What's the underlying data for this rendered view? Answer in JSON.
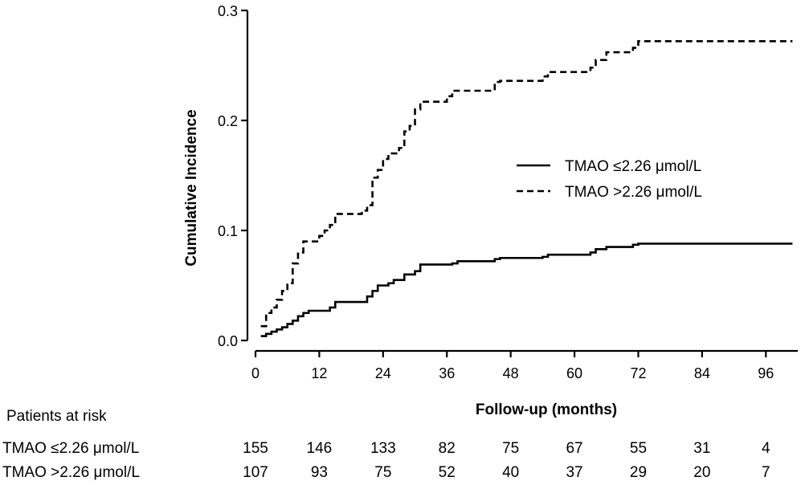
{
  "chart_data": {
    "type": "line",
    "subtype": "step",
    "xlabel": "Follow-up (months)",
    "ylabel": "Cumulative Incidence",
    "xlim": [
      0,
      102
    ],
    "ylim": [
      0,
      0.3
    ],
    "x_ticks": [
      0,
      12,
      24,
      36,
      48,
      60,
      72,
      84,
      96
    ],
    "x_tick_labels": [
      "0",
      "12",
      "24",
      "36",
      "48",
      "60",
      "72",
      "84",
      "96"
    ],
    "y_ticks": [
      0,
      0.1,
      0.2,
      0.3
    ],
    "y_tick_labels": [
      "0.0",
      "0.1",
      "0.2",
      "0.3"
    ],
    "legend_position": "right",
    "series": [
      {
        "name": "TMAO ≤2.26 μmol/L",
        "style": "solid",
        "x": [
          1,
          2,
          3,
          4,
          5,
          6,
          7,
          8,
          9,
          10,
          14,
          15,
          21,
          22,
          23,
          25,
          26,
          28,
          30,
          31,
          37,
          38,
          45,
          46,
          54,
          55,
          63,
          64,
          66,
          71,
          72,
          101
        ],
        "y": [
          0.004,
          0.006,
          0.008,
          0.01,
          0.012,
          0.015,
          0.018,
          0.022,
          0.025,
          0.027,
          0.03,
          0.035,
          0.04,
          0.045,
          0.05,
          0.052,
          0.055,
          0.06,
          0.063,
          0.069,
          0.07,
          0.072,
          0.074,
          0.075,
          0.076,
          0.078,
          0.08,
          0.083,
          0.085,
          0.087,
          0.088,
          0.088
        ]
      },
      {
        "name": "TMAO >2.26 μmol/L",
        "style": "dashed",
        "x": [
          1,
          2,
          3,
          4,
          5,
          6,
          7,
          8,
          9,
          12,
          13,
          14,
          15,
          20,
          21,
          22,
          23,
          24,
          25,
          27,
          28,
          29,
          30,
          31,
          36,
          37,
          45,
          46,
          54,
          55,
          63,
          64,
          66,
          71,
          72,
          101
        ],
        "y": [
          0.013,
          0.025,
          0.03,
          0.037,
          0.045,
          0.052,
          0.07,
          0.08,
          0.09,
          0.095,
          0.1,
          0.105,
          0.115,
          0.118,
          0.123,
          0.148,
          0.155,
          0.165,
          0.17,
          0.175,
          0.19,
          0.195,
          0.21,
          0.217,
          0.222,
          0.227,
          0.235,
          0.236,
          0.24,
          0.244,
          0.248,
          0.255,
          0.262,
          0.266,
          0.272,
          0.272
        ]
      }
    ],
    "at_risk": {
      "title": "Patients at risk",
      "rows": [
        {
          "label": "TMAO ≤2.26 μmol/L",
          "values": [
            "155",
            "146",
            "133",
            "82",
            "75",
            "67",
            "55",
            "31",
            "4"
          ]
        },
        {
          "label": "TMAO >2.26 μmol/L",
          "values": [
            "107",
            "93",
            "75",
            "52",
            "40",
            "37",
            "29",
            "20",
            "7"
          ]
        }
      ]
    }
  }
}
